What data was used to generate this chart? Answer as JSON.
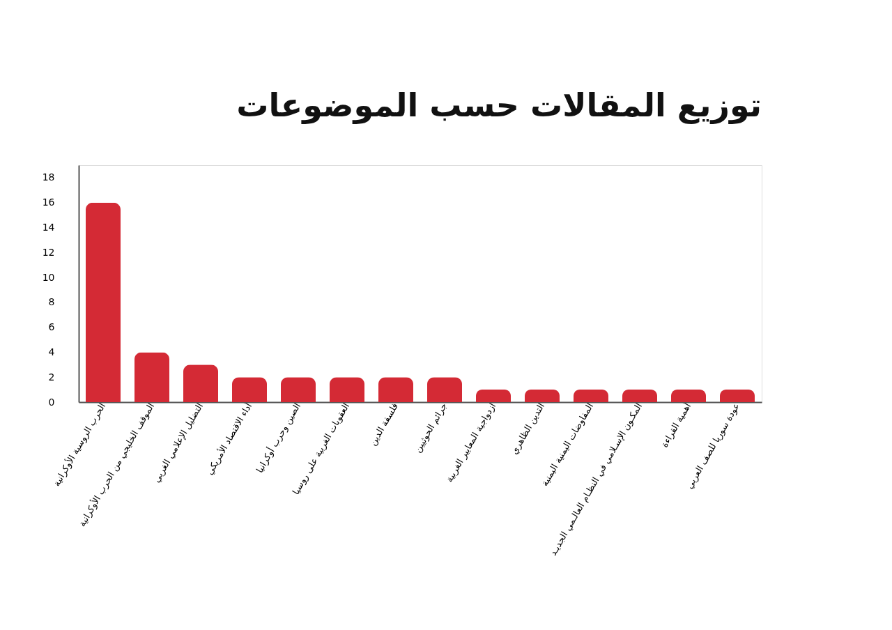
{
  "chart_data": {
    "type": "bar",
    "title": "توزيع المقالات حسب الموضوعات",
    "categories": [
      "الحرب الروسية الأوكرانية",
      "الموقف الخليجي من الحرب الأوكرانية",
      "التضليل الإعلامي الغربي",
      "أداء الاقتصاد الأمريكي",
      "الصين وحرب أوكرانيا",
      "العقوبات الغربية على روسيا",
      "فلسفة الدين",
      "جرائم الحوثيين",
      "ازدواجية المعايير الغربية",
      "التدين الظاهري",
      "المفاوضات اليمنية اليمنية",
      "المكـون الإسـلامي في النظـام العالـمي الجديـد",
      "أهمية القراءة",
      "عودة سوريا للصف العربي"
    ],
    "values": [
      16,
      4,
      3,
      2,
      2,
      2,
      2,
      2,
      1,
      1,
      1,
      1,
      1,
      1
    ],
    "color": "#d42a35",
    "ylim": [
      0,
      19
    ],
    "yticks": [
      0,
      2,
      4,
      6,
      8,
      10,
      12,
      14,
      16,
      18
    ],
    "grid": false
  }
}
